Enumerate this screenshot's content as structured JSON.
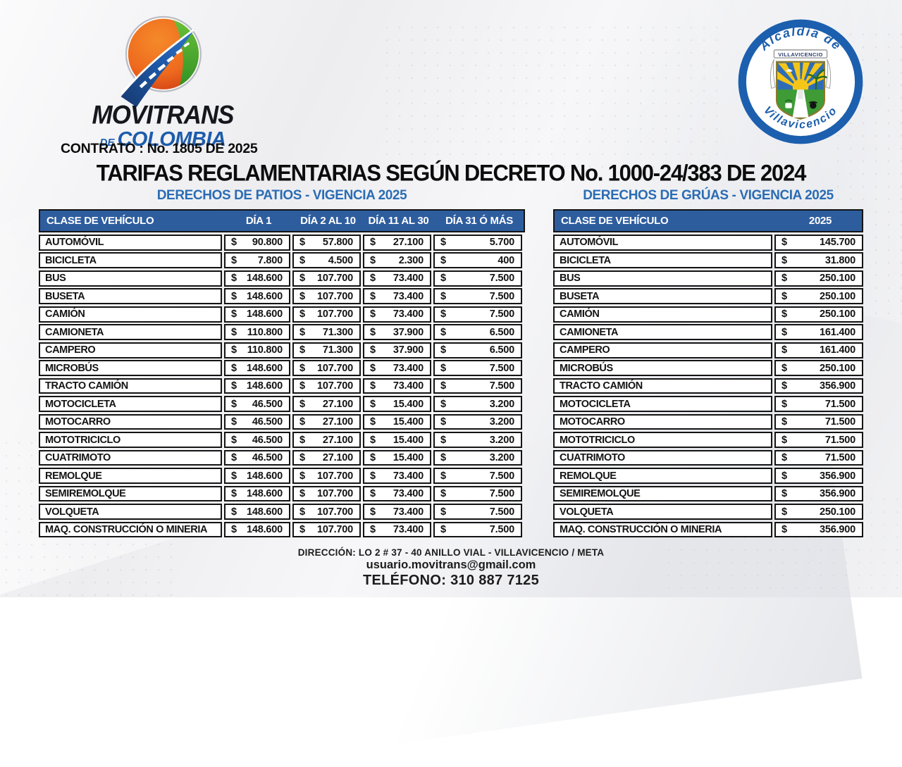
{
  "branding": {
    "company_name": "MOVITRANS",
    "company_subname_small": "DE",
    "company_subname": "COLOMBIA",
    "contract_line": "CONTRATO : No. 1805 DE 2025",
    "seal": {
      "top_text": "Alcaldía de",
      "bottom_text": "Villavicencio",
      "banner_text": "VILLAVICENCIO"
    }
  },
  "title": "TARIFAS REGLAMENTARIAS SEGÚN DECRETO No. 1000-24/383 DE 2024",
  "currency": "$",
  "tables": {
    "patios": {
      "subtitle": "DERECHOS DE PATIOS - VIGENCIA 2025",
      "col_headers": [
        "CLASE DE VEHÍCULO",
        "DÍA 1",
        "DÍA 2 AL 10",
        "DÍA 11 AL 30",
        "DÍA 31 Ó MÁS"
      ],
      "rows": [
        {
          "label": "AUTOMÓVIL",
          "values": [
            "90.800",
            "57.800",
            "27.100",
            "5.700"
          ]
        },
        {
          "label": "BICICLETA",
          "values": [
            "7.800",
            "4.500",
            "2.300",
            "400"
          ]
        },
        {
          "label": "BUS",
          "values": [
            "148.600",
            "107.700",
            "73.400",
            "7.500"
          ]
        },
        {
          "label": "BUSETA",
          "values": [
            "148.600",
            "107.700",
            "73.400",
            "7.500"
          ]
        },
        {
          "label": "CAMIÓN",
          "values": [
            "148.600",
            "107.700",
            "73.400",
            "7.500"
          ]
        },
        {
          "label": "CAMIONETA",
          "values": [
            "110.800",
            "71.300",
            "37.900",
            "6.500"
          ]
        },
        {
          "label": "CAMPERO",
          "values": [
            "110.800",
            "71.300",
            "37.900",
            "6.500"
          ]
        },
        {
          "label": "MICROBÚS",
          "values": [
            "148.600",
            "107.700",
            "73.400",
            "7.500"
          ]
        },
        {
          "label": "TRACTO CAMIÓN",
          "values": [
            "148.600",
            "107.700",
            "73.400",
            "7.500"
          ]
        },
        {
          "label": "MOTOCICLETA",
          "values": [
            "46.500",
            "27.100",
            "15.400",
            "3.200"
          ]
        },
        {
          "label": "MOTOCARRO",
          "values": [
            "46.500",
            "27.100",
            "15.400",
            "3.200"
          ]
        },
        {
          "label": "MOTOTRICICLO",
          "values": [
            "46.500",
            "27.100",
            "15.400",
            "3.200"
          ]
        },
        {
          "label": "CUATRIMOTO",
          "values": [
            "46.500",
            "27.100",
            "15.400",
            "3.200"
          ]
        },
        {
          "label": "REMOLQUE",
          "values": [
            "148.600",
            "107.700",
            "73.400",
            "7.500"
          ]
        },
        {
          "label": "SEMIREMOLQUE",
          "values": [
            "148.600",
            "107.700",
            "73.400",
            "7.500"
          ]
        },
        {
          "label": "VOLQUETA",
          "values": [
            "148.600",
            "107.700",
            "73.400",
            "7.500"
          ]
        },
        {
          "label": "MAQ. CONSTRUCCIÓN O MINERIA",
          "values": [
            "148.600",
            "107.700",
            "73.400",
            "7.500"
          ]
        }
      ]
    },
    "gruas": {
      "subtitle": "DERECHOS DE GRÚAS - VIGENCIA 2025",
      "col_headers": [
        "CLASE DE VEHÍCULO",
        "2025"
      ],
      "rows": [
        {
          "label": "AUTOMÓVIL",
          "values": [
            "145.700"
          ]
        },
        {
          "label": "BICICLETA",
          "values": [
            "31.800"
          ]
        },
        {
          "label": "BUS",
          "values": [
            "250.100"
          ]
        },
        {
          "label": "BUSETA",
          "values": [
            "250.100"
          ]
        },
        {
          "label": "CAMIÓN",
          "values": [
            "250.100"
          ]
        },
        {
          "label": "CAMIONETA",
          "values": [
            "161.400"
          ]
        },
        {
          "label": "CAMPERO",
          "values": [
            "161.400"
          ]
        },
        {
          "label": "MICROBÚS",
          "values": [
            "250.100"
          ]
        },
        {
          "label": "TRACTO CAMIÓN",
          "values": [
            "356.900"
          ]
        },
        {
          "label": "MOTOCICLETA",
          "values": [
            "71.500"
          ]
        },
        {
          "label": "MOTOCARRO",
          "values": [
            "71.500"
          ]
        },
        {
          "label": "MOTOTRICICLO",
          "values": [
            "71.500"
          ]
        },
        {
          "label": "CUATRIMOTO",
          "values": [
            "71.500"
          ]
        },
        {
          "label": "REMOLQUE",
          "values": [
            "356.900"
          ]
        },
        {
          "label": "SEMIREMOLQUE",
          "values": [
            "356.900"
          ]
        },
        {
          "label": "VOLQUETA",
          "values": [
            "250.100"
          ]
        },
        {
          "label": "MAQ. CONSTRUCCIÓN O MINERIA",
          "values": [
            "356.900"
          ]
        }
      ]
    }
  },
  "footer": {
    "address": "DIRECCIÓN: LO 2 # 37 - 40 ANILLO VIAL - VILLAVICENCIO / META",
    "email": "usuario.movitrans@gmail.com",
    "phone": "TELÉFONO: 310 887 7125"
  },
  "colors": {
    "table_header_blue": "#2e5d9e",
    "subtitle_blue": "#2a6cb4",
    "brand_blue": "#1d5cac",
    "brand_dark": "#15171d",
    "seal_blue": "#1c5fae",
    "logo_orange": "#f0701f",
    "logo_red": "#cf3a17",
    "logo_green": "#47a82d",
    "road_blue": "#1f4f9c"
  }
}
